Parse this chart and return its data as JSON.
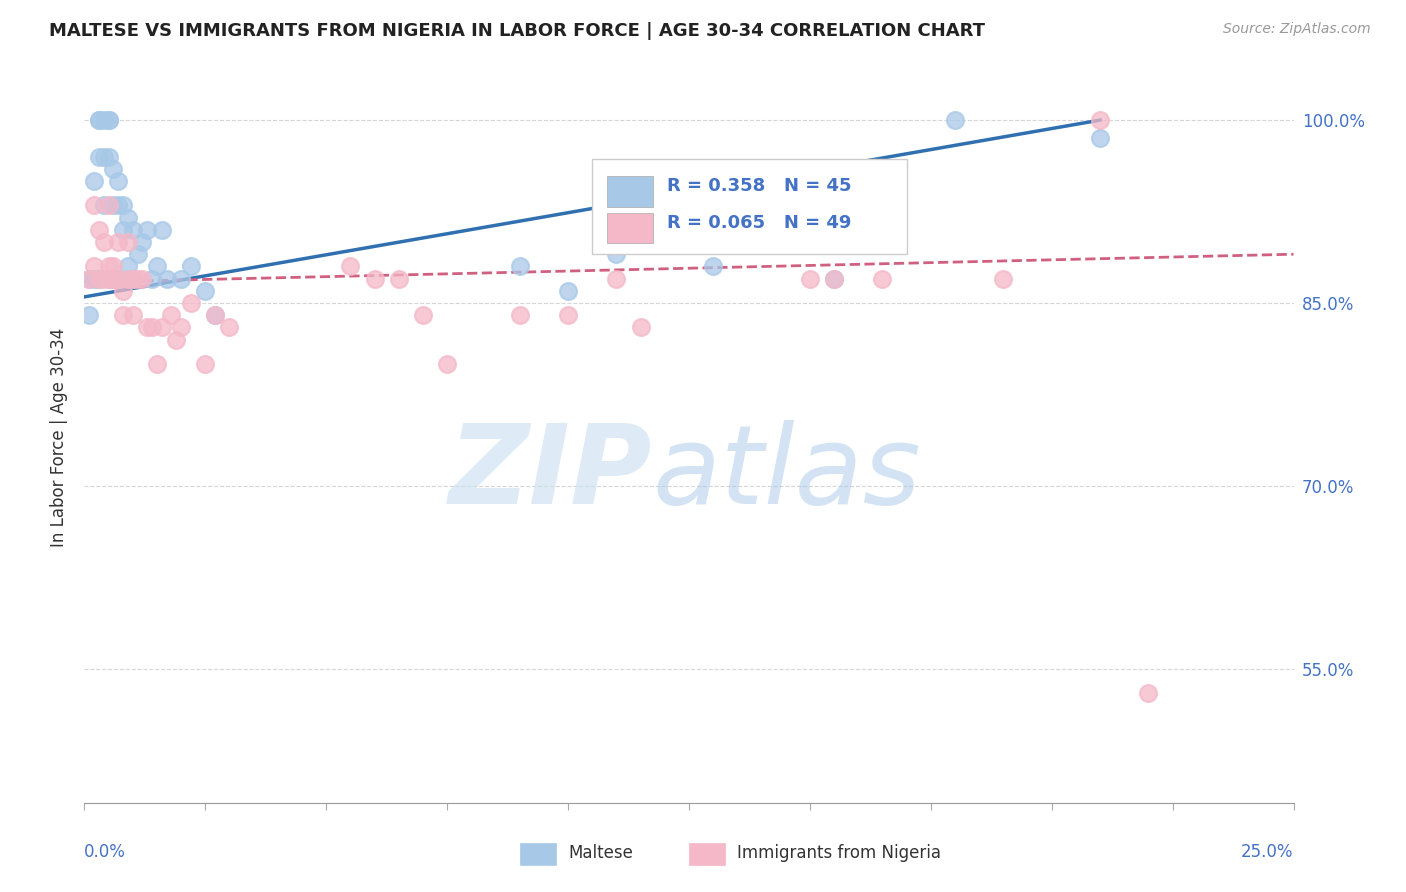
{
  "title": "MALTESE VS IMMIGRANTS FROM NIGERIA IN LABOR FORCE | AGE 30-34 CORRELATION CHART",
  "source": "Source: ZipAtlas.com",
  "ylabel": "In Labor Force | Age 30-34",
  "ytick_values": [
    0.55,
    0.7,
    0.85,
    1.0
  ],
  "xmin": 0.0,
  "xmax": 0.25,
  "ymin": 0.44,
  "ymax": 1.04,
  "blue_R": 0.358,
  "blue_N": 45,
  "pink_R": 0.065,
  "pink_N": 49,
  "blue_color": "#a8c8e8",
  "pink_color": "#f4b8c8",
  "blue_line_color": "#3070b0",
  "pink_line_color": "#d06080",
  "legend_label_blue": "Maltese",
  "legend_label_pink": "Immigrants from Nigeria",
  "blue_points_x": [
    0.001,
    0.001,
    0.002,
    0.002,
    0.003,
    0.003,
    0.003,
    0.003,
    0.004,
    0.004,
    0.004,
    0.005,
    0.005,
    0.005,
    0.005,
    0.006,
    0.006,
    0.006,
    0.007,
    0.007,
    0.007,
    0.008,
    0.008,
    0.009,
    0.009,
    0.01,
    0.01,
    0.011,
    0.012,
    0.013,
    0.014,
    0.015,
    0.016,
    0.017,
    0.02,
    0.022,
    0.025,
    0.027,
    0.09,
    0.1,
    0.11,
    0.13,
    0.155,
    0.18,
    0.21
  ],
  "blue_points_y": [
    0.87,
    0.84,
    0.95,
    0.87,
    1.0,
    1.0,
    0.97,
    0.87,
    1.0,
    0.97,
    0.93,
    1.0,
    1.0,
    0.97,
    0.87,
    0.96,
    0.93,
    0.87,
    0.95,
    0.93,
    0.87,
    0.93,
    0.91,
    0.92,
    0.88,
    0.91,
    0.87,
    0.89,
    0.9,
    0.91,
    0.87,
    0.88,
    0.91,
    0.87,
    0.87,
    0.88,
    0.86,
    0.84,
    0.88,
    0.86,
    0.89,
    0.88,
    0.87,
    1.0,
    0.985
  ],
  "pink_points_x": [
    0.001,
    0.002,
    0.002,
    0.003,
    0.003,
    0.004,
    0.004,
    0.005,
    0.005,
    0.005,
    0.006,
    0.006,
    0.007,
    0.007,
    0.008,
    0.008,
    0.009,
    0.009,
    0.01,
    0.01,
    0.011,
    0.012,
    0.013,
    0.014,
    0.015,
    0.016,
    0.018,
    0.019,
    0.02,
    0.022,
    0.025,
    0.027,
    0.03,
    0.055,
    0.06,
    0.065,
    0.07,
    0.075,
    0.09,
    0.1,
    0.11,
    0.115,
    0.13,
    0.15,
    0.155,
    0.165,
    0.19,
    0.21,
    0.22
  ],
  "pink_points_y": [
    0.87,
    0.93,
    0.88,
    0.91,
    0.87,
    0.9,
    0.87,
    0.93,
    0.88,
    0.87,
    0.88,
    0.87,
    0.9,
    0.87,
    0.86,
    0.84,
    0.9,
    0.87,
    0.87,
    0.84,
    0.87,
    0.87,
    0.83,
    0.83,
    0.8,
    0.83,
    0.84,
    0.82,
    0.83,
    0.85,
    0.8,
    0.84,
    0.83,
    0.88,
    0.87,
    0.87,
    0.84,
    0.8,
    0.84,
    0.84,
    0.87,
    0.83,
    0.92,
    0.87,
    0.87,
    0.87,
    0.87,
    1.0,
    0.53
  ]
}
